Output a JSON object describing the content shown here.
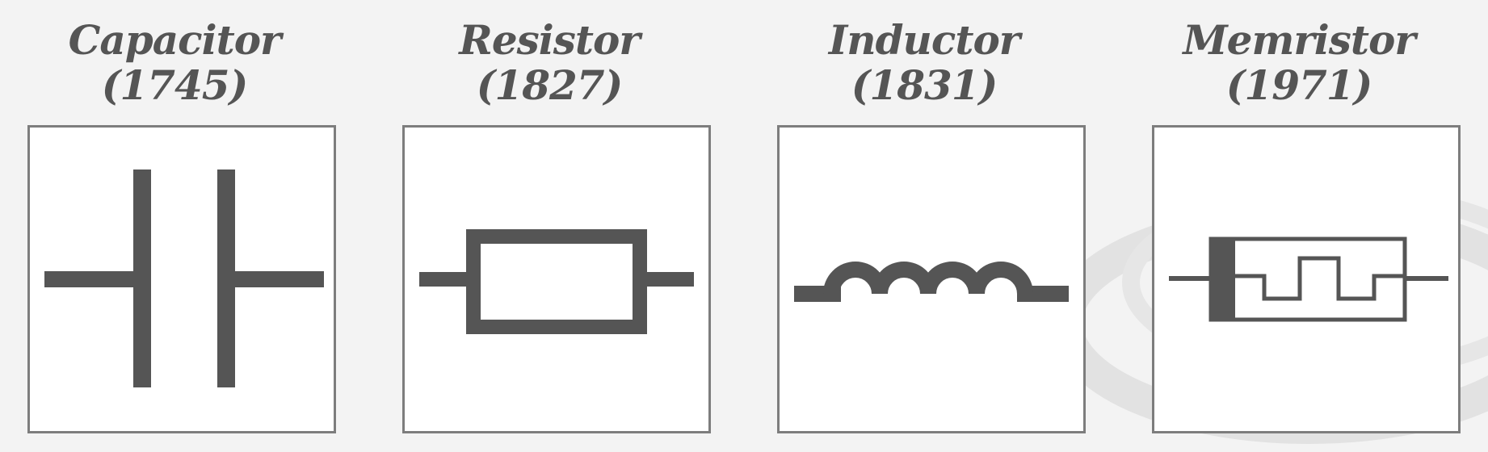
{
  "components": [
    {
      "id": "capacitor",
      "name": "Capacitor",
      "year": "(1745)"
    },
    {
      "id": "resistor",
      "name": "Resistor",
      "year": "(1827)"
    },
    {
      "id": "inductor",
      "name": "Inductor",
      "year": "(1831)"
    },
    {
      "id": "memristor",
      "name": "Memristor",
      "year": "(1971)"
    }
  ],
  "colors": {
    "symbol": "#555555",
    "frame": "#7d7d7d",
    "background": "#f3f3f3",
    "panel": "#ffffff"
  }
}
